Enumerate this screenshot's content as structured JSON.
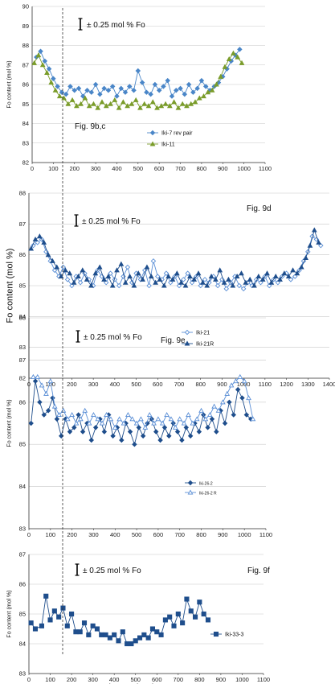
{
  "chart_data": [
    {
      "type": "line",
      "annotation": "Fig. 9b,c",
      "error_bar_label": "± 0.25 mol % Fo",
      "ylabel": "Fo content (mol %)",
      "xlabel": "",
      "xlim": [
        0,
        1100
      ],
      "ylim": [
        82,
        90
      ],
      "xticks": [
        0,
        100,
        200,
        300,
        400,
        500,
        600,
        700,
        800,
        900,
        1000,
        1100
      ],
      "yticks": [
        82,
        83,
        84,
        85,
        86,
        87,
        88,
        89,
        90
      ],
      "series": [
        {
          "name": "Iki-7 rev pair",
          "color": "#4a86c8",
          "marker": "diamond-filled",
          "x": [
            20,
            40,
            60,
            80,
            100,
            120,
            140,
            160,
            180,
            200,
            220,
            240,
            260,
            280,
            300,
            320,
            340,
            360,
            380,
            400,
            420,
            440,
            460,
            480,
            500,
            520,
            540,
            560,
            580,
            600,
            620,
            640,
            660,
            680,
            700,
            720,
            740,
            760,
            780,
            800,
            820,
            840,
            860,
            880,
            900,
            920,
            940,
            960,
            980
          ],
          "y": [
            87.4,
            87.7,
            87.2,
            86.8,
            86.3,
            85.9,
            85.6,
            85.5,
            85.9,
            85.7,
            85.8,
            85.4,
            85.7,
            85.6,
            86.0,
            85.5,
            85.8,
            85.7,
            85.9,
            85.4,
            85.8,
            85.6,
            85.9,
            85.7,
            86.7,
            86.1,
            85.6,
            85.5,
            86.0,
            85.7,
            85.9,
            86.2,
            85.4,
            85.7,
            85.8,
            85.5,
            86.0,
            85.6,
            85.8,
            86.2,
            85.9,
            85.7,
            85.9,
            86.1,
            86.4,
            86.8,
            87.2,
            87.5,
            87.8
          ]
        },
        {
          "name": "Iki-11",
          "color": "#7a9c2a",
          "marker": "triangle-filled",
          "x": [
            10,
            30,
            50,
            70,
            90,
            110,
            130,
            150,
            170,
            190,
            210,
            230,
            250,
            270,
            290,
            310,
            330,
            350,
            370,
            390,
            410,
            430,
            450,
            470,
            490,
            510,
            530,
            550,
            570,
            590,
            610,
            630,
            650,
            670,
            690,
            710,
            730,
            750,
            770,
            790,
            810,
            830,
            850,
            870,
            890,
            910,
            930,
            950,
            970,
            990
          ],
          "y": [
            87.1,
            87.5,
            87.0,
            86.6,
            86.1,
            85.7,
            85.4,
            85.3,
            85.0,
            85.2,
            84.9,
            85.0,
            85.3,
            84.9,
            85.0,
            84.8,
            85.1,
            84.9,
            85.0,
            85.2,
            84.8,
            85.1,
            84.9,
            85.0,
            85.2,
            84.8,
            85.0,
            84.9,
            85.1,
            84.8,
            84.9,
            85.0,
            84.9,
            85.1,
            84.8,
            85.0,
            84.9,
            85.0,
            85.1,
            85.3,
            85.4,
            85.6,
            85.7,
            86.0,
            86.4,
            86.9,
            87.3,
            87.6,
            87.4,
            87.1
          ]
        }
      ]
    },
    {
      "type": "line",
      "annotation": "Fig. 9d",
      "error_bar_label": "± 0.25 mol % Fo",
      "ylabel": "Fo content (mol %)",
      "xlabel": "",
      "xlim": [
        0,
        1400
      ],
      "ylim": [
        82,
        88
      ],
      "xticks": [
        0,
        100,
        200,
        300,
        400,
        500,
        600,
        700,
        800,
        900,
        1000,
        1100,
        1200,
        1300,
        1400
      ],
      "yticks": [
        82,
        83,
        84,
        85,
        86,
        87,
        88
      ],
      "series": [
        {
          "name": "Iki-21",
          "color": "#5b8fd6",
          "marker": "diamond-open",
          "x": [
            20,
            40,
            60,
            80,
            100,
            120,
            140,
            160,
            180,
            200,
            220,
            240,
            260,
            280,
            300,
            320,
            340,
            360,
            380,
            400,
            420,
            440,
            460,
            480,
            500,
            520,
            540,
            560,
            580,
            600,
            620,
            640,
            660,
            680,
            700,
            720,
            740,
            760,
            780,
            800,
            820,
            840,
            860,
            880,
            900,
            920,
            940,
            960,
            980,
            1000,
            1020,
            1040,
            1060,
            1080,
            1100,
            1120,
            1140,
            1160,
            1180,
            1200,
            1220,
            1240,
            1260,
            1280,
            1300,
            1320,
            1340,
            1360
          ],
          "y": [
            86.3,
            86.4,
            86.5,
            86.1,
            85.8,
            85.5,
            85.3,
            85.6,
            85.2,
            85.0,
            85.3,
            85.1,
            85.4,
            85.2,
            85.0,
            85.5,
            85.3,
            85.1,
            85.4,
            85.2,
            85.0,
            85.3,
            85.6,
            85.1,
            85.4,
            85.2,
            85.5,
            85.0,
            85.8,
            85.3,
            85.2,
            85.4,
            85.1,
            85.3,
            85.0,
            85.2,
            85.4,
            85.1,
            85.3,
            85.0,
            85.2,
            85.1,
            85.3,
            85.0,
            85.2,
            84.9,
            85.1,
            85.3,
            85.0,
            84.9,
            85.1,
            85.0,
            85.2,
            85.1,
            85.3,
            85.0,
            85.2,
            85.1,
            85.3,
            85.4,
            85.2,
            85.3,
            85.5,
            85.8,
            86.1,
            86.6,
            86.5,
            86.3
          ]
        },
        {
          "name": "Iki-21R",
          "color": "#1f4e8c",
          "marker": "triangle-filled",
          "x": [
            10,
            30,
            50,
            70,
            90,
            110,
            130,
            150,
            170,
            190,
            210,
            230,
            250,
            270,
            290,
            310,
            330,
            350,
            370,
            390,
            410,
            430,
            450,
            470,
            490,
            510,
            530,
            550,
            570,
            590,
            610,
            630,
            650,
            670,
            690,
            710,
            730,
            750,
            770,
            790,
            810,
            830,
            850,
            870,
            890,
            910,
            930,
            950,
            970,
            990,
            1010,
            1030,
            1050,
            1070,
            1090,
            1110,
            1130,
            1150,
            1170,
            1190,
            1210,
            1230,
            1250,
            1270,
            1290,
            1310,
            1330,
            1350
          ],
          "y": [
            86.2,
            86.5,
            86.6,
            86.4,
            86.0,
            85.8,
            85.6,
            85.3,
            85.5,
            85.4,
            85.1,
            85.3,
            85.5,
            85.2,
            85.0,
            85.4,
            85.6,
            85.2,
            85.3,
            85.0,
            85.5,
            85.7,
            85.1,
            85.3,
            85.0,
            85.4,
            85.2,
            85.6,
            85.3,
            85.1,
            85.2,
            85.0,
            85.3,
            85.2,
            85.4,
            85.1,
            85.0,
            85.3,
            85.2,
            85.4,
            85.1,
            85.0,
            85.3,
            85.2,
            85.5,
            85.1,
            85.2,
            85.0,
            85.3,
            85.4,
            85.1,
            85.2,
            85.0,
            85.3,
            85.2,
            85.4,
            85.1,
            85.3,
            85.2,
            85.4,
            85.3,
            85.5,
            85.4,
            85.6,
            85.9,
            86.3,
            86.8,
            86.4
          ]
        }
      ]
    },
    {
      "type": "line",
      "annotation": "Fig. 9e",
      "error_bar_label": "± 0.25 mol % Fo",
      "ylabel": "Fo content (mol %)",
      "xlabel": "",
      "xlim": [
        0,
        1100
      ],
      "ylim": [
        83,
        88
      ],
      "xticks": [
        0,
        100,
        200,
        300,
        400,
        500,
        600,
        700,
        800,
        900,
        1000,
        1100
      ],
      "yticks": [
        83,
        84,
        85,
        86,
        87,
        88
      ],
      "series": [
        {
          "name": "Iki-26-2",
          "color": "#1f4e8c",
          "marker": "diamond-filled",
          "x": [
            10,
            30,
            50,
            70,
            90,
            110,
            130,
            150,
            170,
            190,
            210,
            230,
            250,
            270,
            290,
            310,
            330,
            350,
            370,
            390,
            410,
            430,
            450,
            470,
            490,
            510,
            530,
            550,
            570,
            590,
            610,
            630,
            650,
            670,
            690,
            710,
            730,
            750,
            770,
            790,
            810,
            830,
            850,
            870,
            890,
            910,
            930,
            950,
            970,
            990,
            1010,
            1030
          ],
          "y": [
            85.5,
            86.5,
            86.0,
            85.7,
            85.8,
            86.1,
            85.6,
            85.2,
            85.6,
            85.3,
            85.4,
            85.7,
            85.3,
            85.5,
            85.1,
            85.4,
            85.6,
            85.3,
            85.7,
            85.2,
            85.4,
            85.1,
            85.5,
            85.3,
            85.0,
            85.4,
            85.2,
            85.5,
            85.6,
            85.3,
            85.1,
            85.4,
            85.2,
            85.5,
            85.3,
            85.1,
            85.4,
            85.2,
            85.5,
            85.3,
            85.7,
            85.4,
            85.6,
            85.3,
            85.8,
            85.5,
            86.0,
            85.7,
            86.3,
            86.1,
            85.7,
            85.6
          ]
        },
        {
          "name": "Iki-26-2 R",
          "color": "#5b8fd6",
          "marker": "triangle-open",
          "x": [
            20,
            40,
            60,
            80,
            100,
            120,
            140,
            160,
            180,
            200,
            220,
            240,
            260,
            280,
            300,
            320,
            340,
            360,
            380,
            400,
            420,
            440,
            460,
            480,
            500,
            520,
            540,
            560,
            580,
            600,
            620,
            640,
            660,
            680,
            700,
            720,
            740,
            760,
            780,
            800,
            820,
            840,
            860,
            880,
            900,
            920,
            940,
            960,
            980,
            1000,
            1020,
            1040
          ],
          "y": [
            86.6,
            86.6,
            86.4,
            86.2,
            86.5,
            85.9,
            85.7,
            85.8,
            85.6,
            85.7,
            85.5,
            85.6,
            85.8,
            85.5,
            85.7,
            85.6,
            85.5,
            85.7,
            85.6,
            85.4,
            85.6,
            85.5,
            85.7,
            85.6,
            85.5,
            85.6,
            85.4,
            85.7,
            85.5,
            85.6,
            85.5,
            85.7,
            85.6,
            85.4,
            85.6,
            85.5,
            85.7,
            85.5,
            85.6,
            85.8,
            85.6,
            85.7,
            85.9,
            85.8,
            86.0,
            86.2,
            86.4,
            86.5,
            86.6,
            86.5,
            86.1,
            85.6
          ]
        }
      ]
    },
    {
      "type": "line",
      "annotation": "Fig. 9f",
      "error_bar_label": "± 0.25 mol % Fo",
      "ylabel": "Fo content (mol %)",
      "xlabel": "Distance in microns",
      "xlim": [
        0,
        1100
      ],
      "ylim": [
        83,
        87
      ],
      "xticks": [
        0,
        100,
        200,
        300,
        400,
        500,
        600,
        700,
        800,
        900,
        1000,
        1100
      ],
      "yticks": [
        83,
        84,
        85,
        86,
        87
      ],
      "series": [
        {
          "name": "Iki-33-3",
          "color": "#1f4e8c",
          "marker": "square-filled",
          "x": [
            10,
            30,
            60,
            80,
            100,
            120,
            140,
            160,
            180,
            200,
            220,
            240,
            260,
            280,
            300,
            320,
            340,
            360,
            380,
            400,
            420,
            440,
            460,
            480,
            500,
            520,
            540,
            560,
            580,
            600,
            620,
            640,
            660,
            680,
            700,
            720,
            740,
            760,
            780,
            800,
            820,
            840
          ],
          "y": [
            84.7,
            84.5,
            84.6,
            85.6,
            84.8,
            85.1,
            84.9,
            85.2,
            84.6,
            85.0,
            84.4,
            84.4,
            84.7,
            84.3,
            84.6,
            84.5,
            84.3,
            84.3,
            84.2,
            84.3,
            84.1,
            84.4,
            84.0,
            84.0,
            84.1,
            84.2,
            84.3,
            84.2,
            84.5,
            84.4,
            84.3,
            84.8,
            84.9,
            84.6,
            85.0,
            84.7,
            85.5,
            85.1,
            84.9,
            85.4,
            85.0,
            84.8
          ]
        }
      ]
    }
  ]
}
